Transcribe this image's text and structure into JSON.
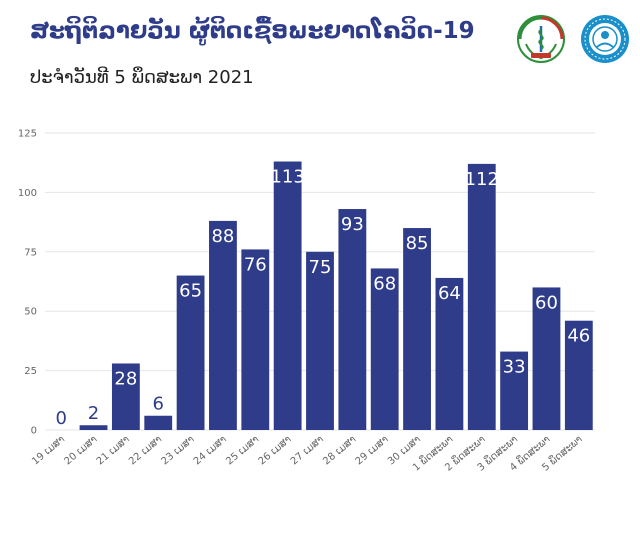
{
  "header": {
    "title": "ສະຖິຕິລາຍວັນ ຜູ້ຕິດເຊື້ອພະຍາດໂຄວິດ-19",
    "subtitle": "ປະຈຳວັນທີ 5 ພຶດສະພາ 2021"
  },
  "logos": {
    "left": "ministry-of-health-logo-icon",
    "right": "disease-control-logo-icon"
  },
  "colors": {
    "title": "#2e3c8a",
    "bar": "#2e3c8a",
    "grid": "#e6e6e6",
    "label_inside": "#ffffff",
    "label_outside": "#2e3c8a"
  },
  "chart_data": {
    "type": "bar",
    "title": "ສະຖິຕິລາຍວັນ ຜູ້ຕິດເຊື້ອພະຍາດໂຄວິດ-19",
    "subtitle": "ປະຈຳວັນທີ 5 ພຶດສະພາ 2021",
    "xlabel": "",
    "ylabel": "",
    "categories": [
      "19 ເມສາ",
      "20 ເມສາ",
      "21 ເມສາ",
      "22 ເມສາ",
      "23 ເມສາ",
      "24 ເມສາ",
      "25 ເມສາ",
      "26 ເມສາ",
      "27 ເມສາ",
      "28 ເມສາ",
      "29 ເມສາ",
      "30 ເມສາ",
      "1 ພຶດສະພາ",
      "2 ພຶດສະພາ",
      "3 ພຶດສະພາ",
      "4 ພຶດສະພາ",
      "5 ພຶດສະພາ"
    ],
    "values": [
      0,
      2,
      28,
      6,
      65,
      88,
      76,
      113,
      75,
      93,
      68,
      85,
      64,
      112,
      33,
      60,
      46
    ],
    "ylim": [
      0,
      125
    ],
    "yticks": [
      0,
      25,
      50,
      75,
      100,
      125
    ],
    "grid": true,
    "legend": "none"
  }
}
